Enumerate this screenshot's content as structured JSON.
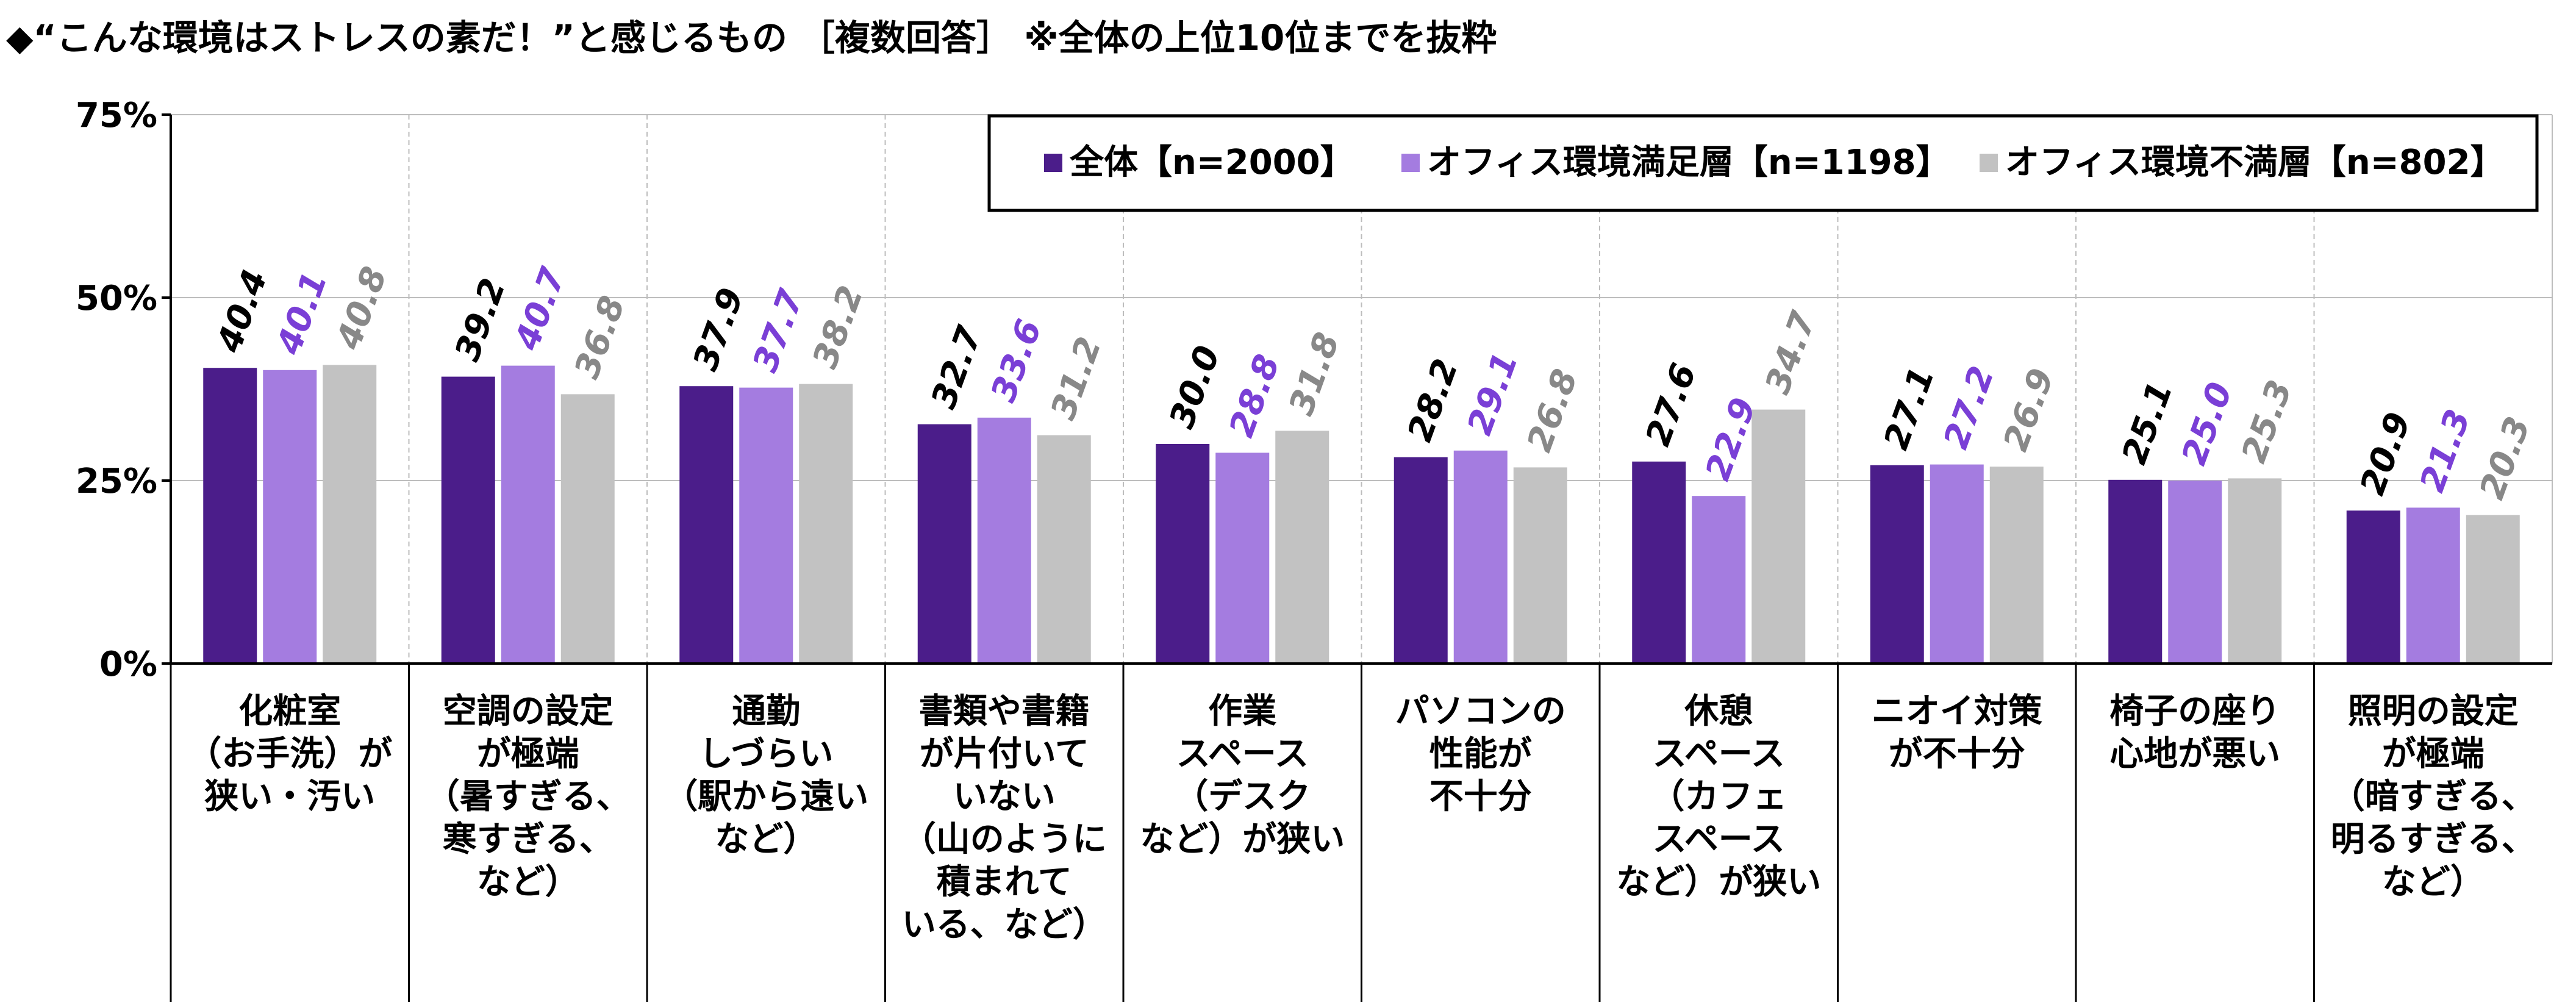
{
  "chart_data": {
    "type": "bar",
    "title": "◆“こんな環境はストレスの素だ！”と感じるもの ［複数回答］ ※全体の上位10位までを抜粋",
    "categories": [
      [
        "化粧室",
        "（お手洗）が",
        "狭い・汚い"
      ],
      [
        "空調の設定",
        "が極端",
        "（暑すぎる、",
        "寒すぎる、",
        "など）"
      ],
      [
        "通勤",
        "しづらい",
        "（駅から遠い",
        "など）"
      ],
      [
        "書類や書籍",
        "が片付いて",
        "いない",
        "（山のように",
        "積まれて",
        "いる、など）"
      ],
      [
        "作業",
        "スペース",
        "（デスク",
        "など）が狭い"
      ],
      [
        "パソコンの",
        "性能が",
        "不十分"
      ],
      [
        "休憩",
        "スペース",
        "（カフェ",
        "スペース",
        "など）が狭い"
      ],
      [
        "ニオイ対策",
        "が不十分"
      ],
      [
        "椅子の座り",
        "心地が悪い"
      ],
      [
        "照明の設定",
        "が極端",
        "（暗すぎる、",
        "明るすぎる、",
        "など）"
      ]
    ],
    "series": [
      {
        "name": "全体【n=2000】",
        "color": "#4b1d8a",
        "label_color": "#000000",
        "values": [
          40.4,
          39.2,
          37.9,
          32.7,
          30.0,
          28.2,
          27.6,
          27.1,
          25.1,
          20.9
        ]
      },
      {
        "name": "オフィス環境満足層【n=1198】",
        "color": "#a47ce0",
        "label_color": "#7a3fd6",
        "values": [
          40.1,
          40.7,
          37.7,
          33.6,
          28.8,
          29.1,
          22.9,
          27.2,
          25.0,
          21.3
        ]
      },
      {
        "name": "オフィス環境不満層【n=802】",
        "color": "#c2c2c2",
        "label_color": "#888888",
        "values": [
          40.8,
          36.8,
          38.2,
          31.2,
          31.8,
          26.8,
          34.7,
          26.9,
          25.3,
          20.3
        ]
      }
    ],
    "value_format": "0.0",
    "ylim": [
      0,
      75
    ],
    "yticks": [
      "0%",
      "25%",
      "50%",
      "75%"
    ],
    "ytick_values": [
      0,
      25,
      50,
      75
    ],
    "grid": true,
    "legend_position": "top-right"
  }
}
